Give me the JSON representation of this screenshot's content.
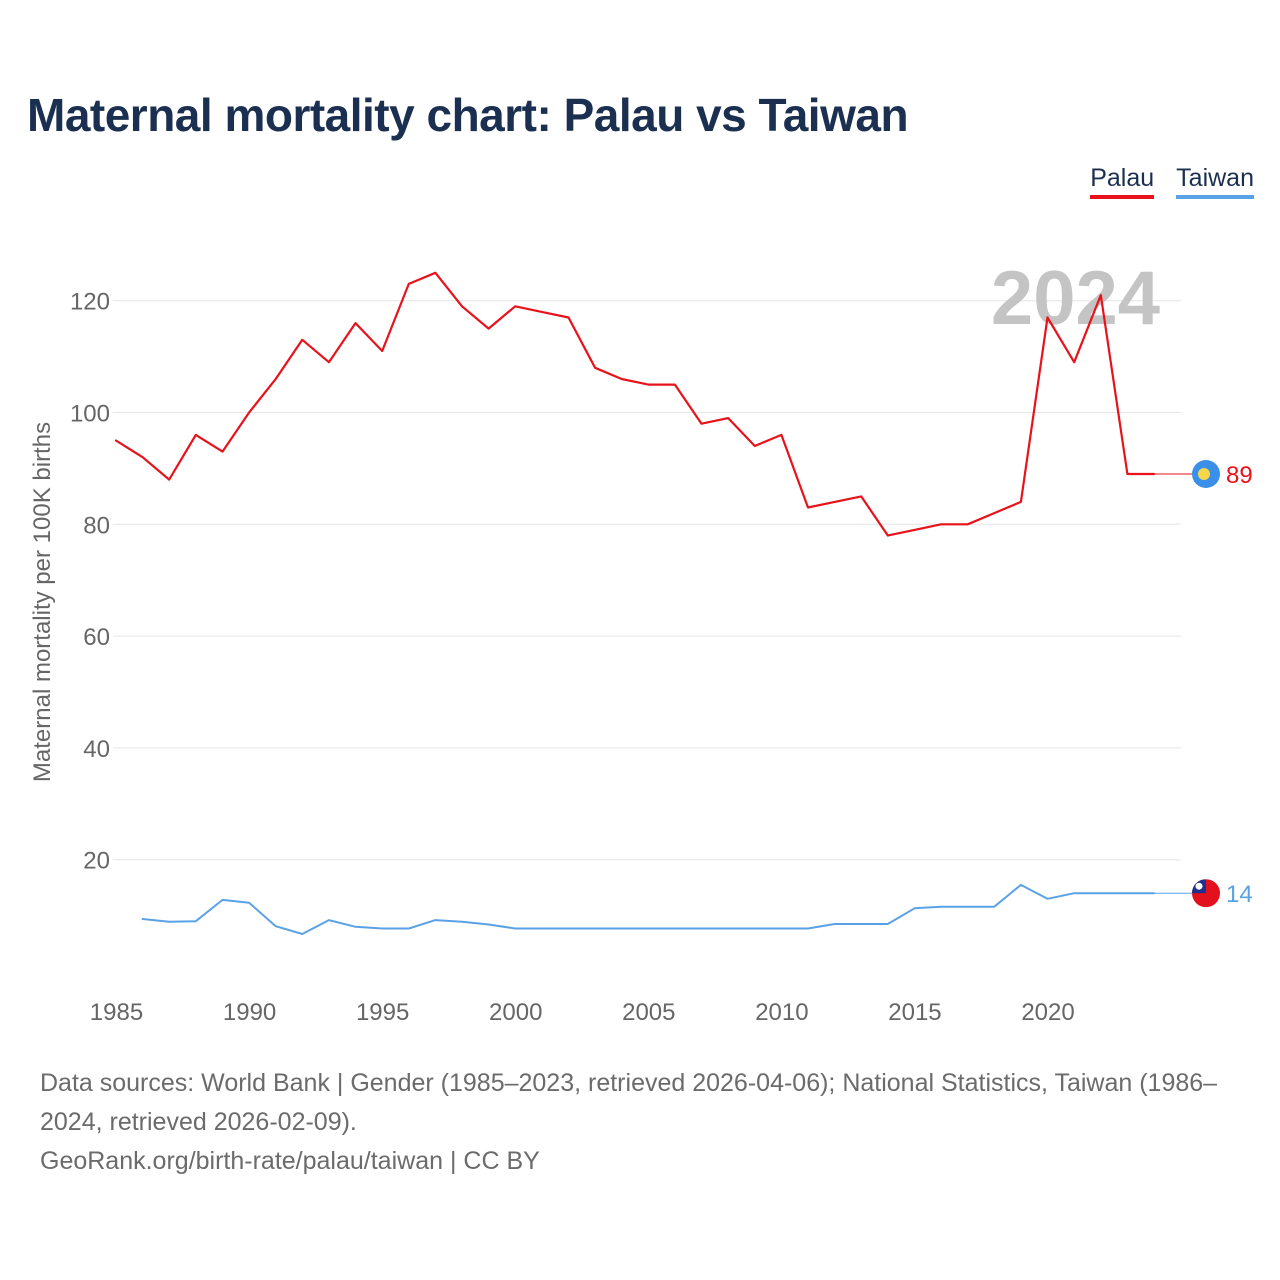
{
  "title": "Maternal mortality chart: Palau vs Taiwan",
  "legend": [
    {
      "name": "Palau",
      "color": "#e8121b"
    },
    {
      "name": "Taiwan",
      "color": "#5aa2e6"
    }
  ],
  "year_watermark": "2024",
  "footer": {
    "sources": "Data sources: World Bank | Gender (1985–2023, retrieved 2026-04-06); National Statistics, Taiwan (1986–2024, retrieved 2026-02-09).",
    "credit": "GeoRank.org/birth-rate/palau/taiwan | CC BY"
  },
  "chart_data": {
    "type": "line",
    "title": "Maternal mortality chart: Palau vs Taiwan",
    "xlabel": "",
    "ylabel": "Maternal mortality per 100K births",
    "xlim": [
      1985,
      2024
    ],
    "ylim": [
      0,
      130
    ],
    "x_ticks": [
      1985,
      1990,
      1995,
      2000,
      2005,
      2010,
      2015,
      2020
    ],
    "y_ticks": [
      20,
      40,
      60,
      80,
      100,
      120
    ],
    "grid": true,
    "legend_position": "top-right",
    "series": [
      {
        "name": "Palau",
        "color": "#e8121b",
        "end_label": "89",
        "flag_icon": "palau-flag-icon",
        "x": [
          1985,
          1986,
          1987,
          1988,
          1989,
          1990,
          1991,
          1992,
          1993,
          1994,
          1995,
          1996,
          1997,
          1998,
          1999,
          2000,
          2001,
          2002,
          2003,
          2004,
          2005,
          2006,
          2007,
          2008,
          2009,
          2010,
          2011,
          2012,
          2013,
          2014,
          2015,
          2016,
          2017,
          2018,
          2019,
          2020,
          2021,
          2022,
          2023,
          2024
        ],
        "values": [
          95,
          92,
          88,
          96,
          93,
          100,
          106,
          113,
          109,
          116,
          111,
          123,
          125,
          119,
          115,
          119,
          118,
          117,
          108,
          106,
          105,
          105,
          98,
          99,
          94,
          96,
          83,
          84,
          85,
          78,
          79,
          80,
          80,
          82,
          84,
          117,
          109,
          121,
          89,
          89
        ]
      },
      {
        "name": "Taiwan",
        "color": "#5aa2e6",
        "end_label": "14",
        "flag_icon": "taiwan-flag-icon",
        "x": [
          1986,
          1987,
          1988,
          1989,
          1990,
          1991,
          1992,
          1993,
          1994,
          1995,
          1996,
          1997,
          1998,
          1999,
          2000,
          2001,
          2002,
          2003,
          2004,
          2005,
          2006,
          2007,
          2008,
          2009,
          2010,
          2011,
          2012,
          2013,
          2014,
          2015,
          2016,
          2017,
          2018,
          2019,
          2020,
          2021,
          2022,
          2023,
          2024
        ],
        "values": [
          9.4,
          8.9,
          9.0,
          12.8,
          12.3,
          8.1,
          6.7,
          9.2,
          8.0,
          7.7,
          7.7,
          9.2,
          8.9,
          8.4,
          7.7,
          7.7,
          7.7,
          7.7,
          7.7,
          7.7,
          7.7,
          7.7,
          7.7,
          7.7,
          7.7,
          7.7,
          8.5,
          8.5,
          8.5,
          11.3,
          11.6,
          11.6,
          11.6,
          15.5,
          13.0,
          14.0,
          14.0,
          14.0,
          14.0
        ]
      }
    ]
  }
}
